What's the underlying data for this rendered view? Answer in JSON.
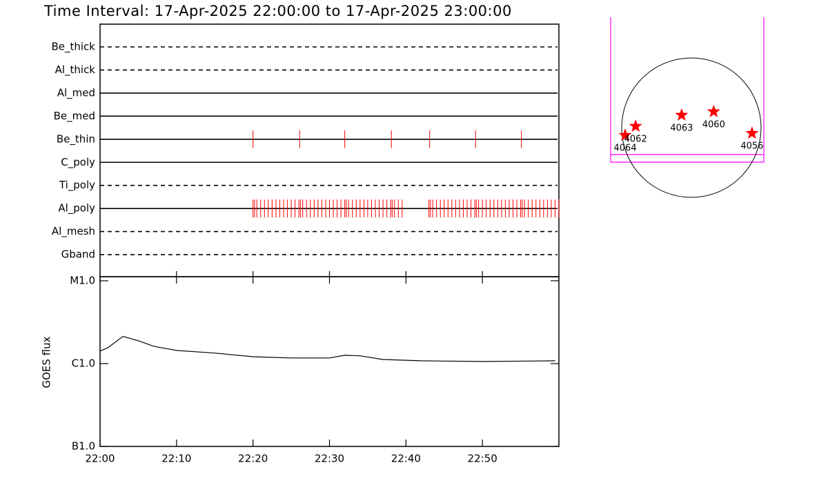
{
  "chart_data": [
    {
      "type": "timeline",
      "title": "Time Interval: 17-Apr-2025 22:00:00 to 17-Apr-2025 23:00:00",
      "categories": [
        "Be_thick",
        "Al_thick",
        "Al_med",
        "Be_med",
        "Be_thin",
        "C_poly",
        "Ti_poly",
        "Al_poly",
        "Al_mesh",
        "Gband"
      ],
      "line_style": [
        "dashed",
        "dashed",
        "solid",
        "solid",
        "solid",
        "solid",
        "dashed",
        "solid",
        "dashed",
        "dashed"
      ],
      "xlim": [
        0,
        60
      ],
      "color": "#ff0000",
      "events": [
        [],
        [],
        [],
        [],
        [
          20,
          26.1,
          32,
          38.1,
          43.1,
          49.1,
          55.1
        ],
        [],
        [],
        [
          20,
          20.2,
          20.5,
          21,
          21.5,
          22,
          22.5,
          23,
          23.5,
          24,
          24.5,
          25,
          25.5,
          26,
          26.2,
          26.5,
          27,
          27.5,
          28,
          28.5,
          29,
          29.5,
          30,
          30.5,
          31,
          31.5,
          32,
          32.2,
          32.5,
          33,
          33.5,
          34,
          34.5,
          35,
          35.5,
          36,
          36.5,
          37,
          37.5,
          38,
          38.2,
          38.5,
          39,
          39.5,
          43,
          43.2,
          43.5,
          44,
          44.5,
          45,
          45.5,
          46,
          46.5,
          47,
          47.5,
          48,
          48.5,
          49,
          49.2,
          49.5,
          50,
          50.5,
          51,
          51.5,
          52,
          52.5,
          53,
          53.5,
          54,
          54.5,
          55,
          55.2,
          55.5,
          56,
          56.5,
          57,
          57.5,
          58,
          58.5,
          59,
          59.5,
          60
        ],
        [],
        []
      ]
    },
    {
      "type": "line",
      "y_label": "GOES flux",
      "log_scale": true,
      "color": "#000000",
      "x": [
        0,
        1,
        3,
        5,
        7,
        10,
        15,
        20,
        25,
        30,
        32,
        34,
        37,
        42,
        50,
        59.5
      ],
      "values": [
        1.42e-06,
        1.55e-06,
        2.13e-06,
        1.89e-06,
        1.62e-06,
        1.44e-06,
        1.34e-06,
        1.21e-06,
        1.17e-06,
        1.17e-06,
        1.26e-06,
        1.24e-06,
        1.12e-06,
        1.08e-06,
        1.06e-06,
        1.08e-06
      ],
      "xlim": [
        0,
        60
      ],
      "xticks": [
        {
          "value": 0,
          "label": "22:00"
        },
        {
          "value": 10,
          "label": "22:10"
        },
        {
          "value": 20,
          "label": "22:20"
        },
        {
          "value": 30,
          "label": "22:30"
        },
        {
          "value": 40,
          "label": "22:40"
        },
        {
          "value": 50,
          "label": "22:50"
        }
      ],
      "ylim": [
        1e-07,
        1.12e-05
      ],
      "yticks": [
        {
          "value": 1e-05,
          "label": "M1.0"
        },
        {
          "value": 1e-06,
          "label": "C1.0"
        },
        {
          "value": 1e-07,
          "label": "B1.0"
        }
      ]
    },
    {
      "type": "scatter",
      "color": "#ff0000",
      "labels": [
        "4064",
        "4062",
        "4063",
        "4060",
        "4056"
      ],
      "x": [
        -0.95,
        -0.8,
        -0.14,
        0.32,
        0.87
      ],
      "values": [
        -0.11,
        0.02,
        0.18,
        0.23,
        -0.08
      ]
    }
  ]
}
